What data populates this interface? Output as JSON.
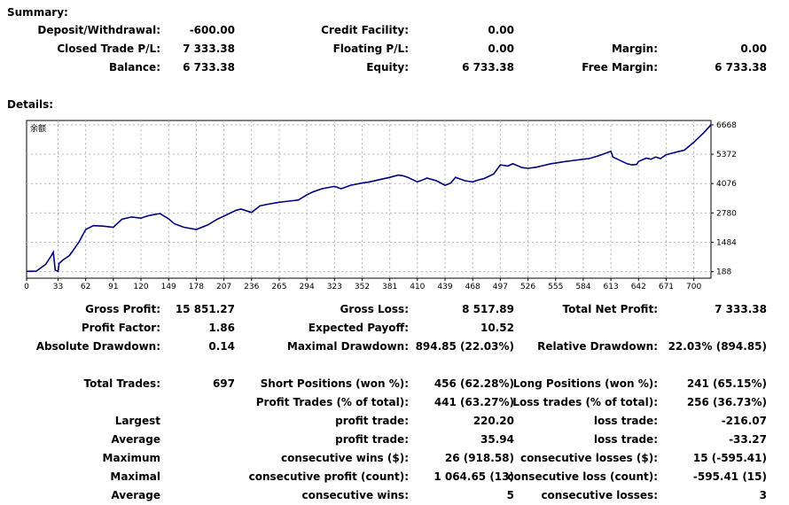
{
  "summary": {
    "heading": "Summary:",
    "rows": [
      [
        {
          "label": "Deposit/Withdrawal:",
          "value": "-600.00"
        },
        {
          "label": "Credit Facility:",
          "value": "0.00"
        },
        {
          "label": "",
          "value": ""
        }
      ],
      [
        {
          "label": "Closed Trade P/L:",
          "value": "7 333.38"
        },
        {
          "label": "Floating P/L:",
          "value": "0.00"
        },
        {
          "label": "Margin:",
          "value": "0.00"
        }
      ],
      [
        {
          "label": "Balance:",
          "value": "6 733.38"
        },
        {
          "label": "Equity:",
          "value": "6 733.38"
        },
        {
          "label": "Free Margin:",
          "value": "6 733.38"
        }
      ]
    ]
  },
  "details": {
    "heading": "Details:",
    "rows": [
      [
        {
          "label": "Gross Profit:",
          "value": "15 851.27"
        },
        {
          "label": "Gross Loss:",
          "value": "8 517.89"
        },
        {
          "label": "Total Net Profit:",
          "value": "7 333.38"
        }
      ],
      [
        {
          "label": "Profit Factor:",
          "value": "1.86"
        },
        {
          "label": "Expected Payoff:",
          "value": "10.52"
        },
        {
          "label": "",
          "value": ""
        }
      ],
      [
        {
          "label": "Absolute Drawdown:",
          "value": "0.14"
        },
        {
          "label": "Maximal Drawdown:",
          "value": "894.85 (22.03%)"
        },
        {
          "label": "Relative Drawdown:",
          "value": "22.03% (894.85)"
        }
      ],
      [
        {
          "label": "Total Trades:",
          "value": "697"
        },
        {
          "label": "Short Positions (won %):",
          "value": "456 (62.28%)"
        },
        {
          "label": "Long Positions (won %):",
          "value": "241 (65.15%)"
        }
      ],
      [
        {
          "label": "",
          "value": ""
        },
        {
          "label": "Profit Trades (% of total):",
          "value": "441 (63.27%)"
        },
        {
          "label": "Loss trades (% of total):",
          "value": "256 (36.73%)"
        }
      ],
      [
        {
          "label": "Largest",
          "value": ""
        },
        {
          "label": "profit trade:",
          "value": "220.20"
        },
        {
          "label": "loss trade:",
          "value": "-216.07"
        }
      ],
      [
        {
          "label": "Average",
          "value": ""
        },
        {
          "label": "profit trade:",
          "value": "35.94"
        },
        {
          "label": "loss trade:",
          "value": "-33.27"
        }
      ],
      [
        {
          "label": "Maximum",
          "value": ""
        },
        {
          "label": "consecutive wins ($):",
          "value": "26 (918.58)"
        },
        {
          "label": "consecutive losses ($):",
          "value": "15 (-595.41)"
        }
      ],
      [
        {
          "label": "Maximal",
          "value": ""
        },
        {
          "label": "consecutive profit (count):",
          "value": "1 064.65 (13)"
        },
        {
          "label": "consecutive loss (count):",
          "value": "-595.41 (15)"
        }
      ],
      [
        {
          "label": "Average",
          "value": ""
        },
        {
          "label": "consecutive wins:",
          "value": "5"
        },
        {
          "label": "consecutive losses:",
          "value": "3"
        }
      ]
    ]
  },
  "chart_data": {
    "type": "line",
    "title": "余额",
    "xlabel": "",
    "ylabel": "",
    "x_ticks": [
      "0",
      "33",
      "62",
      "91",
      "120",
      "149",
      "178",
      "207",
      "236",
      "265",
      "294",
      "323",
      "352",
      "381",
      "410",
      "439",
      "468",
      "497",
      "526",
      "555",
      "584",
      "613",
      "642",
      "671",
      "700"
    ],
    "y_ticks": [
      "6668",
      "5372",
      "4076",
      "2780",
      "1484",
      "188"
    ],
    "xlim": [
      0,
      718
    ],
    "ylim": [
      -100,
      6860
    ],
    "grid": true,
    "line_color": "#000080",
    "series": [
      {
        "x": [
          0,
          10,
          20,
          26,
          28,
          30,
          33,
          34,
          38,
          45,
          50,
          55,
          62,
          70,
          80,
          91,
          100,
          110,
          120,
          125,
          130,
          140,
          149,
          155,
          165,
          178,
          190,
          200,
          210,
          220,
          225,
          236,
          245,
          255,
          265,
          275,
          285,
          294,
          300,
          310,
          323,
          330,
          340,
          352,
          360,
          370,
          381,
          390,
          395,
          400,
          410,
          415,
          420,
          430,
          439,
          445,
          450,
          460,
          468,
          475,
          480,
          490,
          497,
          505,
          510,
          520,
          526,
          535,
          540,
          550,
          555,
          565,
          575,
          584,
          590,
          600,
          613,
          615,
          620,
          625,
          630,
          635,
          640,
          642,
          650,
          655,
          660,
          665,
          671,
          680,
          690,
          700,
          705,
          710,
          718
        ],
        "y": [
          200,
          210,
          510,
          900,
          1050,
          250,
          200,
          550,
          700,
          900,
          1200,
          1500,
          2050,
          2220,
          2200,
          2150,
          2500,
          2600,
          2550,
          2620,
          2680,
          2750,
          2520,
          2300,
          2150,
          2050,
          2250,
          2500,
          2700,
          2900,
          2950,
          2800,
          3100,
          3180,
          3250,
          3300,
          3350,
          3580,
          3700,
          3850,
          3950,
          3850,
          4000,
          4100,
          4150,
          4250,
          4350,
          4450,
          4420,
          4350,
          4150,
          4230,
          4320,
          4200,
          4000,
          4100,
          4350,
          4200,
          4150,
          4250,
          4300,
          4500,
          4900,
          4850,
          4950,
          4780,
          4750,
          4800,
          4850,
          4950,
          4980,
          5050,
          5100,
          5150,
          5180,
          5300,
          5500,
          5250,
          5150,
          5050,
          4950,
          4900,
          4920,
          5050,
          5200,
          5150,
          5250,
          5180,
          5350,
          5450,
          5550,
          5900,
          6100,
          6300,
          6668
        ]
      }
    ]
  }
}
